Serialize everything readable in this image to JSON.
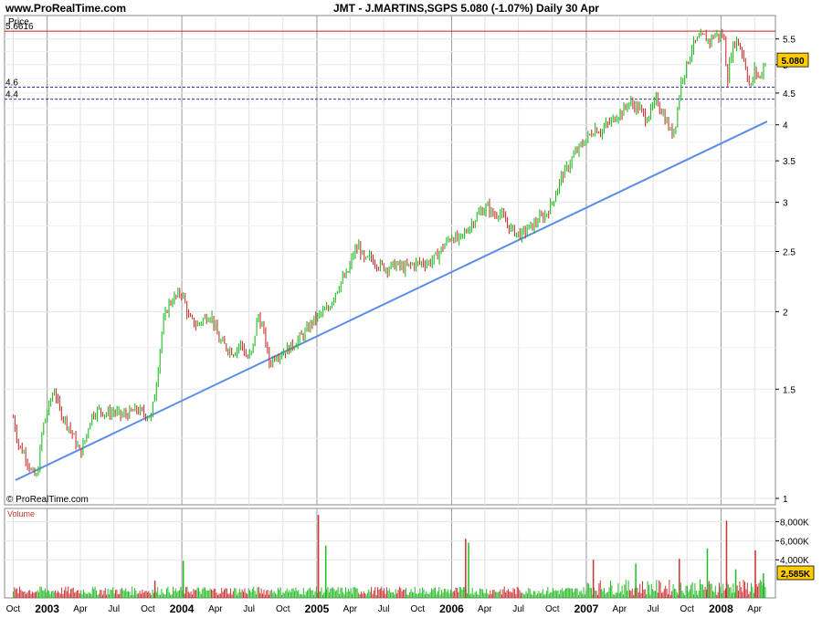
{
  "header": {
    "site": "www.ProRealTime.com",
    "title": "JMT - J.MARTINS,SGPS    5.080 (-1.07%)    Daily  30 Apr"
  },
  "chart_data": [
    {
      "type": "line",
      "name": "price-panel",
      "panel_label": "Price",
      "copyright": "© ProRealTime.com",
      "y_scale": "log",
      "ylim": [
        1.0,
        6.0
      ],
      "y_ticks": [
        "1",
        "1.5",
        "2",
        "2.5",
        "3",
        "3.5",
        "4",
        "4.5",
        "5",
        "5.5"
      ],
      "x_ticks": [
        "Oct",
        "2003",
        "Apr",
        "Jul",
        "Oct",
        "2004",
        "Apr",
        "Jul",
        "Oct",
        "2005",
        "Apr",
        "Jul",
        "Oct",
        "2006",
        "Apr",
        "Jul",
        "Oct",
        "2007",
        "Apr",
        "Jul",
        "Oct",
        "2008",
        "Apr"
      ],
      "x_ticks_bold": [
        "2003",
        "2004",
        "2005",
        "2006",
        "2007",
        "2008"
      ],
      "last_price": "5.080",
      "colors": {
        "up": "#22bb22",
        "down": "#cc3333",
        "trendline": "#5a8de8",
        "resistance": "#cc2222",
        "support": "#3333aa",
        "last_badge": "#ffcc00"
      },
      "horizontal_lines": [
        {
          "label": "5.6616",
          "value": 5.6616,
          "style": "solid"
        },
        {
          "label": "4.6",
          "value": 4.6,
          "style": "dashed"
        },
        {
          "label": "4.4",
          "value": 4.4,
          "style": "dashed"
        }
      ],
      "trendline": {
        "from": [
          "2002-10-07",
          1.07
        ],
        "to": [
          "2008-05-05",
          4.05
        ]
      },
      "series": [
        {
          "points": [
            [
              "2002-10-01",
              1.35
            ],
            [
              "2002-10-15",
              1.22
            ],
            [
              "2002-11-01",
              1.18
            ],
            [
              "2002-11-20",
              1.1
            ],
            [
              "2002-12-05",
              1.08
            ],
            [
              "2002-12-20",
              1.3
            ],
            [
              "2003-01-05",
              1.4
            ],
            [
              "2003-01-20",
              1.5
            ],
            [
              "2003-02-05",
              1.38
            ],
            [
              "2003-02-25",
              1.32
            ],
            [
              "2003-03-15",
              1.25
            ],
            [
              "2003-04-01",
              1.18
            ],
            [
              "2003-04-15",
              1.25
            ],
            [
              "2003-05-01",
              1.36
            ],
            [
              "2003-05-20",
              1.39
            ],
            [
              "2003-06-10",
              1.37
            ],
            [
              "2003-07-01",
              1.38
            ],
            [
              "2003-07-20",
              1.36
            ],
            [
              "2003-08-10",
              1.37
            ],
            [
              "2003-09-01",
              1.39
            ],
            [
              "2003-09-20",
              1.37
            ],
            [
              "2003-10-10",
              1.35
            ],
            [
              "2003-10-25",
              1.55
            ],
            [
              "2003-11-10",
              1.9
            ],
            [
              "2003-11-25",
              2.05
            ],
            [
              "2003-12-10",
              2.1
            ],
            [
              "2004-01-01",
              2.15
            ],
            [
              "2004-01-20",
              1.95
            ],
            [
              "2004-02-10",
              1.9
            ],
            [
              "2004-03-01",
              1.95
            ],
            [
              "2004-03-20",
              1.98
            ],
            [
              "2004-04-10",
              1.8
            ],
            [
              "2004-05-01",
              1.75
            ],
            [
              "2004-05-20",
              1.72
            ],
            [
              "2004-06-10",
              1.78
            ],
            [
              "2004-06-25",
              1.68
            ],
            [
              "2004-07-10",
              1.72
            ],
            [
              "2004-07-25",
              1.98
            ],
            [
              "2004-08-10",
              1.85
            ],
            [
              "2004-08-25",
              1.65
            ],
            [
              "2004-09-10",
              1.7
            ],
            [
              "2004-10-01",
              1.72
            ],
            [
              "2004-10-20",
              1.75
            ],
            [
              "2004-11-10",
              1.8
            ],
            [
              "2004-12-01",
              1.85
            ],
            [
              "2004-12-20",
              1.93
            ],
            [
              "2005-01-10",
              1.98
            ],
            [
              "2005-02-01",
              2.02
            ],
            [
              "2005-02-20",
              2.15
            ],
            [
              "2005-03-10",
              2.25
            ],
            [
              "2005-03-25",
              2.3
            ],
            [
              "2005-04-10",
              2.48
            ],
            [
              "2005-04-25",
              2.55
            ],
            [
              "2005-05-10",
              2.4
            ],
            [
              "2005-05-25",
              2.45
            ],
            [
              "2005-06-15",
              2.38
            ],
            [
              "2005-07-10",
              2.35
            ],
            [
              "2005-08-01",
              2.38
            ],
            [
              "2005-08-25",
              2.35
            ],
            [
              "2005-09-15",
              2.38
            ],
            [
              "2005-10-10",
              2.4
            ],
            [
              "2005-11-01",
              2.4
            ],
            [
              "2005-11-20",
              2.45
            ],
            [
              "2005-12-10",
              2.55
            ],
            [
              "2006-01-01",
              2.65
            ],
            [
              "2006-01-20",
              2.6
            ],
            [
              "2006-02-10",
              2.7
            ],
            [
              "2006-03-01",
              2.8
            ],
            [
              "2006-03-20",
              2.9
            ],
            [
              "2006-04-10",
              2.95
            ],
            [
              "2006-04-25",
              2.85
            ],
            [
              "2006-05-10",
              2.9
            ],
            [
              "2006-05-25",
              2.8
            ],
            [
              "2006-06-10",
              2.72
            ],
            [
              "2006-06-25",
              2.68
            ],
            [
              "2006-07-10",
              2.66
            ],
            [
              "2006-07-25",
              2.72
            ],
            [
              "2006-08-10",
              2.75
            ],
            [
              "2006-08-25",
              2.82
            ],
            [
              "2006-09-10",
              2.85
            ],
            [
              "2006-09-25",
              2.95
            ],
            [
              "2006-10-10",
              3.1
            ],
            [
              "2006-10-25",
              3.3
            ],
            [
              "2006-11-10",
              3.4
            ],
            [
              "2006-11-25",
              3.55
            ],
            [
              "2006-12-10",
              3.65
            ],
            [
              "2006-12-25",
              3.75
            ],
            [
              "2007-01-10",
              3.85
            ],
            [
              "2007-01-25",
              3.95
            ],
            [
              "2007-02-10",
              3.9
            ],
            [
              "2007-02-25",
              4.0
            ],
            [
              "2007-03-10",
              4.05
            ],
            [
              "2007-03-25",
              4.15
            ],
            [
              "2007-04-10",
              4.2
            ],
            [
              "2007-04-25",
              4.35
            ],
            [
              "2007-05-10",
              4.3
            ],
            [
              "2007-05-25",
              4.25
            ],
            [
              "2007-06-10",
              4.1
            ],
            [
              "2007-06-25",
              4.2
            ],
            [
              "2007-07-10",
              4.4
            ],
            [
              "2007-07-25",
              4.2
            ],
            [
              "2007-08-10",
              4.0
            ],
            [
              "2007-08-20",
              3.85
            ],
            [
              "2007-09-01",
              4.05
            ],
            [
              "2007-09-15",
              4.7
            ],
            [
              "2007-10-01",
              5.0
            ],
            [
              "2007-10-15",
              5.35
            ],
            [
              "2007-11-01",
              5.5
            ],
            [
              "2007-11-15",
              5.55
            ],
            [
              "2007-12-01",
              5.45
            ],
            [
              "2007-12-15",
              5.6
            ],
            [
              "2007-12-28",
              5.55
            ],
            [
              "2008-01-08",
              5.6
            ],
            [
              "2008-01-18",
              4.7
            ],
            [
              "2008-01-28",
              5.2
            ],
            [
              "2008-02-10",
              5.5
            ],
            [
              "2008-02-25",
              5.3
            ],
            [
              "2008-03-10",
              4.9
            ],
            [
              "2008-03-20",
              4.55
            ],
            [
              "2008-04-01",
              4.9
            ],
            [
              "2008-04-15",
              4.75
            ],
            [
              "2008-04-30",
              5.08
            ]
          ]
        }
      ]
    },
    {
      "type": "bar",
      "name": "volume-panel",
      "panel_label": "Volume",
      "ylim": [
        0,
        9000000
      ],
      "y_ticks": [
        "8,000K",
        "6,000K",
        "4,000K"
      ],
      "last_volume": "2,585K",
      "spikes": [
        [
          "2003-10-20",
          1800000
        ],
        [
          "2004-01-05",
          3900000
        ],
        [
          "2005-01-05",
          8700000
        ],
        [
          "2005-01-25",
          5500000
        ],
        [
          "2006-02-08",
          6200000
        ],
        [
          "2006-02-16",
          5800000
        ],
        [
          "2007-01-20",
          4000000
        ],
        [
          "2007-05-15",
          3600000
        ],
        [
          "2007-09-10",
          4100000
        ],
        [
          "2007-11-25",
          5200000
        ],
        [
          "2008-01-16",
          8100000
        ],
        [
          "2008-02-10",
          3000000
        ],
        [
          "2008-04-03",
          5000000
        ],
        [
          "2008-04-25",
          2585000
        ]
      ]
    }
  ]
}
